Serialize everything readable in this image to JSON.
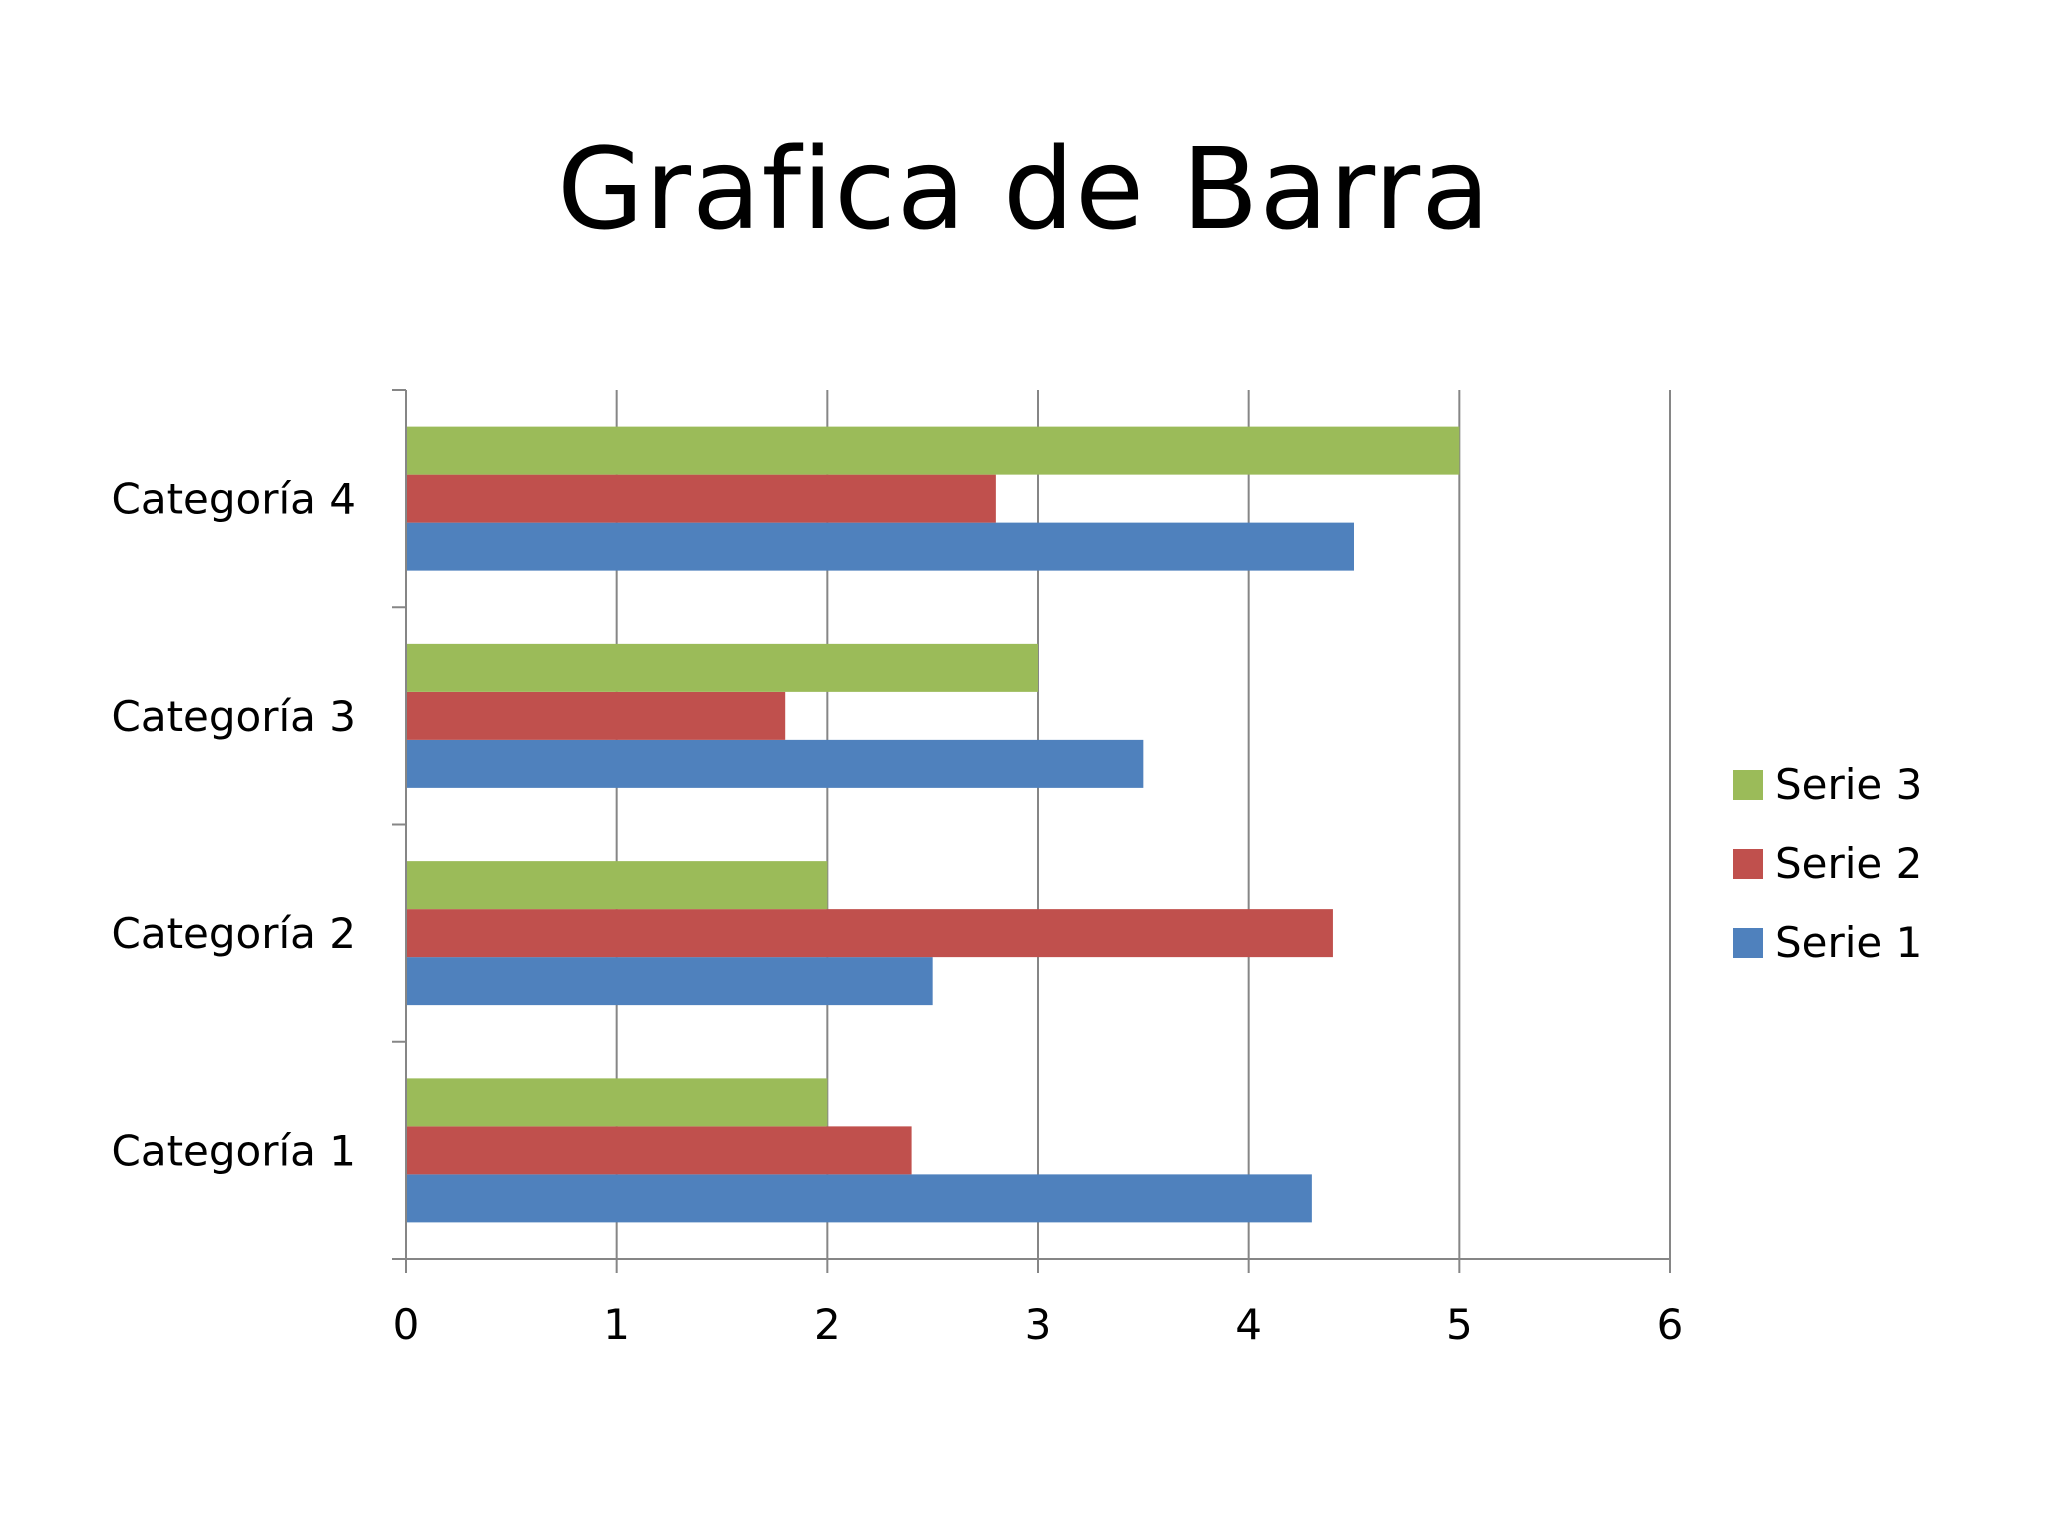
{
  "chart_data": {
    "type": "bar",
    "orientation": "horizontal",
    "title": "Grafica de Barra",
    "categories": [
      "Categoría 1",
      "Categoría 2",
      "Categoría 3",
      "Categoría 4"
    ],
    "series": [
      {
        "name": "Serie 1",
        "values": [
          4.3,
          2.5,
          3.5,
          4.5
        ],
        "color": "#4F81BD"
      },
      {
        "name": "Serie 2",
        "values": [
          2.4,
          4.4,
          1.8,
          2.8
        ],
        "color": "#C0504D"
      },
      {
        "name": "Serie 3",
        "values": [
          2.0,
          2.0,
          3.0,
          5.0
        ],
        "color": "#9BBB59"
      }
    ],
    "xlim": [
      0,
      6
    ],
    "x_ticks": [
      "0",
      "1",
      "2",
      "3",
      "4",
      "5",
      "6"
    ],
    "grid": true,
    "legend_position": "right",
    "legend_order": [
      "Serie 3",
      "Serie 2",
      "Serie 1"
    ]
  }
}
